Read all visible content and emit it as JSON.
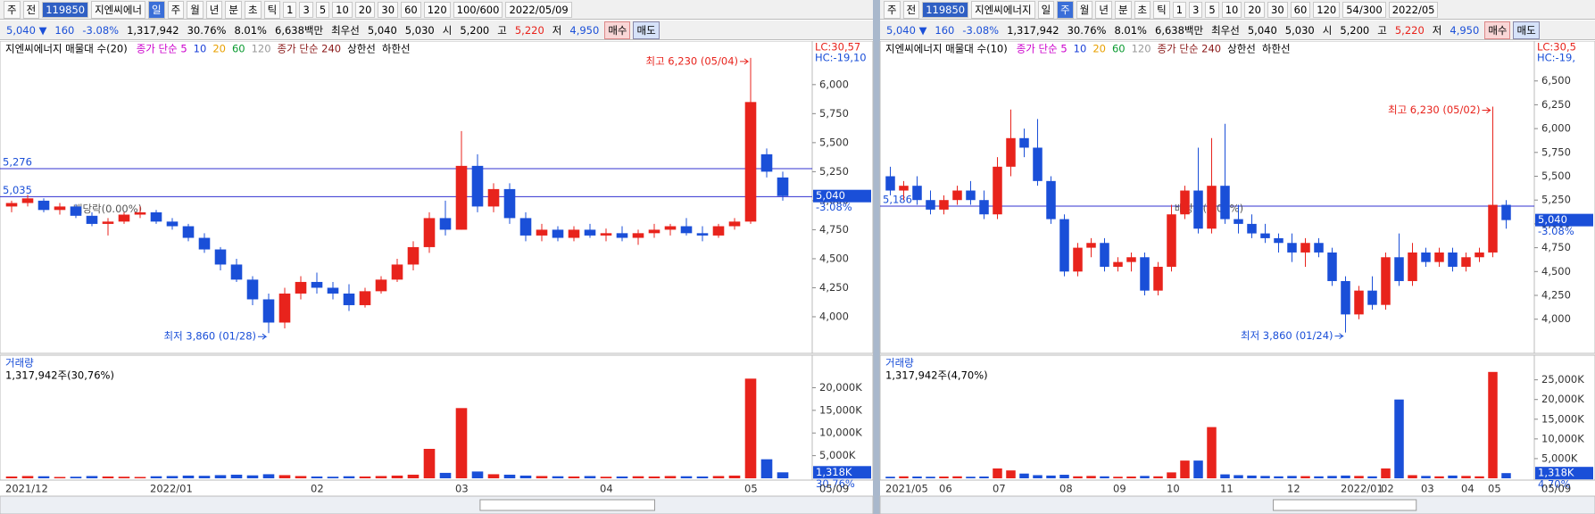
{
  "toolbars": [
    {
      "row1": [
        "주",
        "전",
        "119850",
        "지엔씨에너",
        "일",
        "주",
        "월",
        "년",
        "분",
        "초",
        "틱",
        "1",
        "3",
        "5",
        "10",
        "20",
        "30",
        "60",
        "120",
        "100/600",
        "2022/05/09"
      ],
      "row2": [
        "5,040 ▼",
        "160",
        "-3.08%",
        "1,317,942",
        "30.76%",
        "8.01%",
        "6,638백만",
        "최우선",
        "5,040",
        "5,030",
        "시",
        "5,200",
        "고",
        "5,220",
        "저",
        "4,950",
        "매수",
        "매도"
      ]
    },
    {
      "row1": [
        "주",
        "전",
        "119850",
        "지엔씨에너지",
        "일",
        "주",
        "월",
        "년",
        "분",
        "초",
        "틱",
        "1",
        "3",
        "5",
        "10",
        "20",
        "30",
        "60",
        "120",
        "54/300",
        "2022/05"
      ],
      "row2": [
        "5,040 ▼",
        "160",
        "-3.08%",
        "1,317,942",
        "30.76%",
        "8.01%",
        "6,638백만",
        "최우선",
        "5,040",
        "5,030",
        "시",
        "5,200",
        "고",
        "5,220",
        "저",
        "4,950",
        "매수",
        "매도"
      ]
    }
  ],
  "chart_data": [
    {
      "type": "candlestick",
      "title": "지엔씨에너지 매물대 수(20)",
      "legend": [
        "종가 단순 5",
        "10",
        "20",
        "60",
        "120",
        "종가 단순 240",
        "상한선",
        "하한선"
      ],
      "legend_colors": [
        "#cc00cc",
        "#1a3fd8",
        "#e8a000",
        "#0a9a30",
        "#999999",
        "#8b1a1a",
        "#000000",
        "#000000"
      ],
      "corner_labels": [
        "LC:30,57",
        "HC:-19,10"
      ],
      "categories": [
        "2021/12",
        null,
        null,
        null,
        null,
        null,
        null,
        null,
        null,
        "2022/01",
        null,
        null,
        null,
        null,
        null,
        null,
        null,
        null,
        null,
        "02",
        null,
        null,
        null,
        null,
        null,
        null,
        null,
        null,
        "03",
        null,
        null,
        null,
        null,
        null,
        null,
        null,
        null,
        "04",
        null,
        null,
        null,
        null,
        null,
        null,
        null,
        null,
        "05",
        null,
        null
      ],
      "end_label": "05/09",
      "open": [
        4950,
        4980,
        5000,
        4920,
        4950,
        4870,
        4800,
        4820,
        4880,
        4900,
        4820,
        4780,
        4680,
        4580,
        4450,
        4320,
        4150,
        3950,
        4200,
        4300,
        4250,
        4200,
        4100,
        4220,
        4320,
        4450,
        4600,
        4850,
        4750,
        5300,
        4950,
        5100,
        4850,
        4700,
        4750,
        4680,
        4750,
        4700,
        4720,
        4680,
        4720,
        4750,
        4780,
        4720,
        4700,
        4780,
        4820,
        5400,
        5200
      ],
      "high": [
        5000,
        5050,
        5020,
        4980,
        4970,
        4900,
        4850,
        4900,
        4950,
        4920,
        4850,
        4800,
        4720,
        4600,
        4500,
        4350,
        4200,
        4250,
        4350,
        4380,
        4300,
        4280,
        4250,
        4350,
        4500,
        4650,
        4900,
        5000,
        5600,
        5400,
        5150,
        5150,
        4900,
        4800,
        4780,
        4780,
        4800,
        4760,
        4780,
        4750,
        4800,
        4800,
        4850,
        4780,
        4800,
        4850,
        6230,
        5450,
        5250
      ],
      "low": [
        4900,
        4950,
        4900,
        4880,
        4850,
        4780,
        4700,
        4800,
        4850,
        4800,
        4750,
        4650,
        4550,
        4400,
        4300,
        4100,
        3860,
        3900,
        4150,
        4200,
        4150,
        4050,
        4080,
        4200,
        4300,
        4400,
        4550,
        4700,
        4750,
        4900,
        4900,
        4800,
        4650,
        4650,
        4650,
        4650,
        4680,
        4650,
        4650,
        4620,
        4680,
        4700,
        4700,
        4650,
        4680,
        4750,
        4800,
        5200,
        5000
      ],
      "close": [
        4980,
        5020,
        4920,
        4950,
        4870,
        4800,
        4820,
        4880,
        4900,
        4820,
        4780,
        4680,
        4580,
        4450,
        4320,
        4150,
        3950,
        4200,
        4300,
        4250,
        4200,
        4100,
        4220,
        4320,
        4450,
        4600,
        4850,
        4750,
        5300,
        4950,
        5100,
        4850,
        4700,
        4750,
        4680,
        4750,
        4700,
        4720,
        4680,
        4720,
        4750,
        4780,
        4720,
        4700,
        4780,
        4820,
        5850,
        5250,
        5040
      ],
      "up_color": "#e8231c",
      "down_color": "#1a4fd8",
      "ylim": [
        3700,
        6360
      ],
      "yticks": [
        {
          "value": 4000,
          "label": "4,000"
        },
        {
          "value": 4250,
          "label": "4,250"
        },
        {
          "value": 4500,
          "label": "4,500"
        },
        {
          "value": 4750,
          "label": "4,750"
        },
        {
          "value": 5000,
          "label": "5,000"
        },
        {
          "value": 5250,
          "label": "5,250"
        },
        {
          "value": 5500,
          "label": "5,500"
        },
        {
          "value": 5750,
          "label": "5,750"
        },
        {
          "value": 6000,
          "label": "6,000"
        }
      ],
      "hlines": [
        {
          "value": 5276,
          "label": "5,276"
        },
        {
          "value": 5035,
          "label": "5,035"
        }
      ],
      "high_label": "최고 6,230 (05/04)",
      "low_label": "최저 3,860 (01/28)",
      "dividend_label": "배당락(0.00%)",
      "current": {
        "value": 5040,
        "label": "5,040",
        "change": "-3.08%"
      },
      "volume": {
        "title": "거래량",
        "subtitle": "1,317,942주(30,76%)",
        "values": [
          400,
          500,
          450,
          300,
          350,
          500,
          400,
          350,
          300,
          450,
          500,
          600,
          550,
          700,
          800,
          650,
          900,
          700,
          500,
          400,
          350,
          450,
          400,
          500,
          600,
          800,
          6500,
          1200,
          15500,
          1500,
          900,
          800,
          600,
          500,
          450,
          400,
          500,
          350,
          400,
          450,
          400,
          500,
          450,
          400,
          500,
          600,
          22000,
          4200,
          1318
        ],
        "ylim": [
          0,
          26000
        ],
        "yticks": [
          {
            "value": 5000,
            "label": "5,000K"
          },
          {
            "value": 10000,
            "label": "10,000K"
          },
          {
            "value": 15000,
            "label": "15,000K"
          },
          {
            "value": 20000,
            "label": "20,000K"
          }
        ],
        "current": {
          "value": 1318,
          "label": "1,318K"
        },
        "ratio_label": "30.76%"
      }
    },
    {
      "type": "candlestick",
      "title": "지엔씨에너지 매물대 수(10)",
      "legend": [
        "종가 단순 5",
        "10",
        "20",
        "60",
        "120",
        "종가 단순 240",
        "상한선",
        "하한선"
      ],
      "legend_colors": [
        "#cc00cc",
        "#1a3fd8",
        "#e8a000",
        "#0a9a30",
        "#999999",
        "#8b1a1a",
        "#000000",
        "#000000"
      ],
      "corner_labels": [
        "LC:30,5",
        "HC:-19,"
      ],
      "categories": [
        "2021/05",
        null,
        null,
        null,
        "06",
        null,
        null,
        null,
        "07",
        null,
        null,
        null,
        null,
        "08",
        null,
        null,
        null,
        "09",
        null,
        null,
        null,
        "10",
        null,
        null,
        null,
        "11",
        null,
        null,
        null,
        null,
        "12",
        null,
        null,
        null,
        "2022/01",
        null,
        null,
        "02",
        null,
        null,
        "03",
        null,
        null,
        "04",
        null,
        "05",
        null
      ],
      "end_label": "05/09",
      "open": [
        5500,
        5350,
        5400,
        5250,
        5150,
        5250,
        5350,
        5250,
        5100,
        5600,
        5900,
        5800,
        5450,
        5050,
        4500,
        4750,
        4800,
        4550,
        4600,
        4650,
        4300,
        4550,
        5100,
        5350,
        4950,
        5400,
        5050,
        5000,
        4900,
        4850,
        4800,
        4700,
        4800,
        4700,
        4400,
        4050,
        4300,
        4150,
        4650,
        4400,
        4700,
        4600,
        4700,
        4550,
        4650,
        4700,
        5200
      ],
      "high": [
        5600,
        5450,
        5500,
        5350,
        5300,
        5400,
        5450,
        5350,
        5700,
        6200,
        6000,
        6100,
        5500,
        5100,
        4800,
        4850,
        4850,
        4650,
        4700,
        4700,
        4600,
        5200,
        5400,
        5800,
        5900,
        6050,
        5200,
        5100,
        5000,
        4900,
        4900,
        4850,
        4850,
        4750,
        4450,
        4350,
        4450,
        4700,
        4900,
        4800,
        4750,
        4750,
        4750,
        4700,
        4750,
        6230,
        5250
      ],
      "low": [
        5300,
        5250,
        5200,
        5100,
        5100,
        5200,
        5200,
        5050,
        5050,
        5500,
        5700,
        5400,
        5000,
        4450,
        4450,
        4650,
        4500,
        4500,
        4500,
        4250,
        4250,
        4500,
        5050,
        4900,
        4900,
        5000,
        4900,
        4850,
        4800,
        4700,
        4600,
        4550,
        4650,
        4350,
        3860,
        4000,
        4100,
        4100,
        4350,
        4350,
        4550,
        4550,
        4500,
        4500,
        4600,
        4650,
        4950
      ],
      "close": [
        5350,
        5400,
        5250,
        5150,
        5250,
        5350,
        5250,
        5100,
        5600,
        5900,
        5800,
        5450,
        5050,
        4500,
        4750,
        4800,
        4550,
        4600,
        4650,
        4300,
        4550,
        5100,
        5350,
        4950,
        5400,
        5050,
        5000,
        4900,
        4850,
        4800,
        4700,
        4800,
        4700,
        4400,
        4050,
        4300,
        4150,
        4650,
        4400,
        4700,
        4600,
        4700,
        4550,
        4650,
        4700,
        5200,
        5040
      ],
      "up_color": "#e8231c",
      "down_color": "#1a4fd8",
      "ylim": [
        3660,
        6900
      ],
      "yticks": [
        {
          "value": 4000,
          "label": "4,000"
        },
        {
          "value": 4250,
          "label": "4,250"
        },
        {
          "value": 4500,
          "label": "4,500"
        },
        {
          "value": 4750,
          "label": "4,750"
        },
        {
          "value": 5000,
          "label": "5,000"
        },
        {
          "value": 5250,
          "label": "5,250"
        },
        {
          "value": 5500,
          "label": "5,500"
        },
        {
          "value": 5750,
          "label": "5,750"
        },
        {
          "value": 6000,
          "label": "6,000"
        },
        {
          "value": 6250,
          "label": "6,250"
        },
        {
          "value": 6500,
          "label": "6,500"
        }
      ],
      "hlines": [
        {
          "value": 5186,
          "label": "5,186"
        }
      ],
      "high_label": "최고 6,230 (05/02)",
      "low_label": "최저 3,860 (01/24)",
      "dividend_label": "배당락(0.00%)",
      "current": {
        "value": 5040,
        "label": "5,040",
        "change": "-3.08%"
      },
      "volume": {
        "title": "거래량",
        "subtitle": "1,317,942주(4,70%)",
        "values": [
          400,
          500,
          450,
          400,
          450,
          500,
          400,
          450,
          2500,
          2000,
          1200,
          800,
          700,
          900,
          500,
          600,
          500,
          400,
          450,
          600,
          500,
          1500,
          4500,
          4500,
          13000,
          1000,
          800,
          700,
          600,
          500,
          600,
          550,
          500,
          600,
          700,
          600,
          500,
          2500,
          20000,
          800,
          600,
          500,
          700,
          600,
          500,
          27000,
          1318
        ],
        "ylim": [
          0,
          29900
        ],
        "yticks": [
          {
            "value": 5000,
            "label": "5,000K"
          },
          {
            "value": 10000,
            "label": "10,000K"
          },
          {
            "value": 15000,
            "label": "15,000K"
          },
          {
            "value": 20000,
            "label": "20,000K"
          },
          {
            "value": 25000,
            "label": "25,000K"
          }
        ],
        "current": {
          "value": 1318,
          "label": "1,318K"
        },
        "ratio_label": "4.70%"
      }
    }
  ]
}
